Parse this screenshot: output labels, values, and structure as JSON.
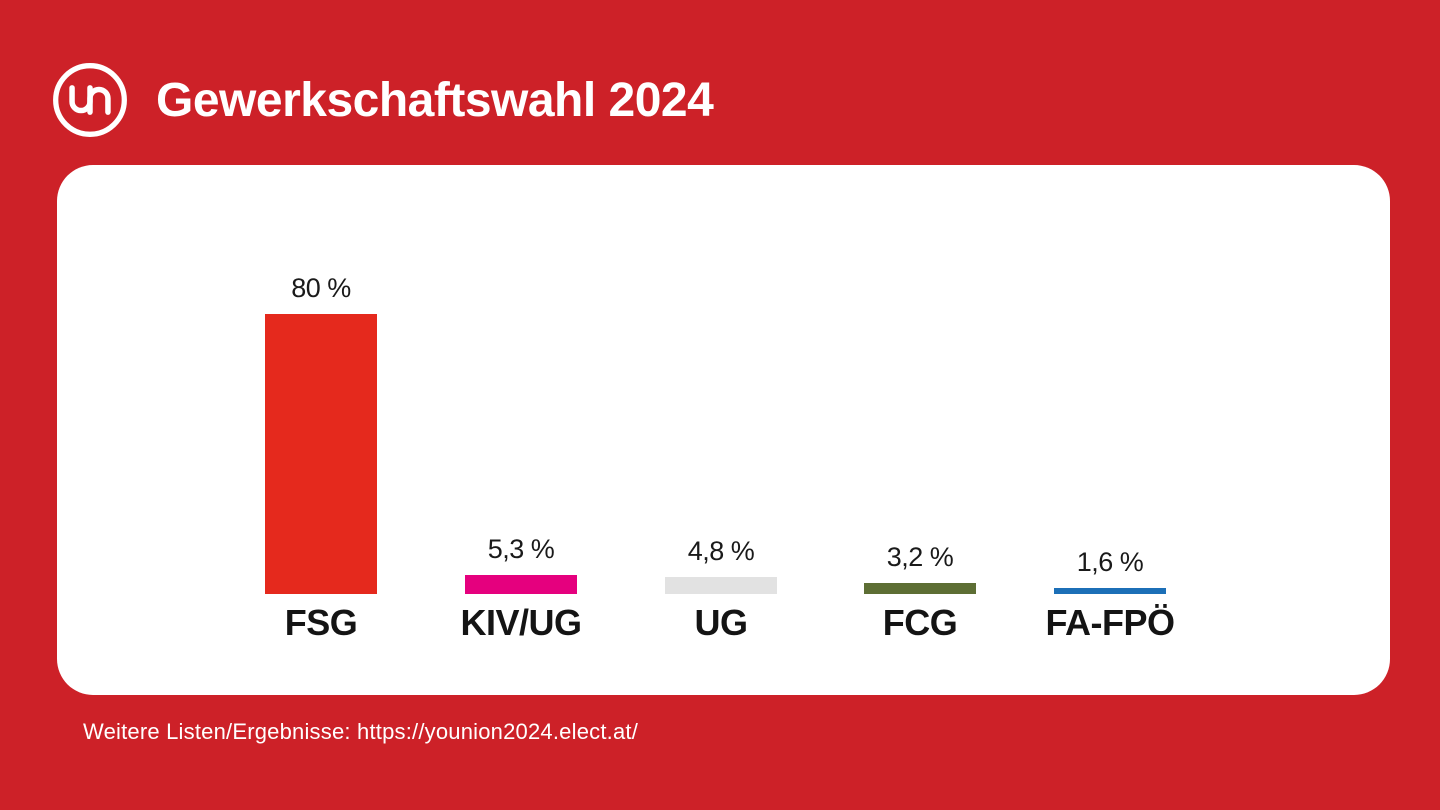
{
  "header": {
    "logo": "younion-logo",
    "logo_text": "un",
    "title": "Gewerkschaftswahl 2024"
  },
  "chart_data": {
    "type": "bar",
    "title": "Gewerkschaftswahl 2024",
    "categories": [
      "FSG",
      "KIV/UG",
      "UG",
      "FCG",
      "FA-FPÖ"
    ],
    "values": [
      80,
      5.3,
      4.8,
      3.2,
      1.6
    ],
    "value_labels": [
      "80 %",
      "5,3 %",
      "4,8 %",
      "3,2 %",
      "1,6 %"
    ],
    "bar_colors": [
      "#e5291d",
      "#e5007e",
      "#e2e2e2",
      "#5d6e34",
      "#1c6fb7"
    ],
    "xlabel": "",
    "ylabel": "",
    "unit": "%",
    "ylim": [
      0,
      100
    ],
    "grid": false,
    "axes_visible": false,
    "legend": "none"
  },
  "footer": {
    "note": "Weitere Listen/Ergebnisse: https://younion2024.elect.at/"
  },
  "colors": {
    "background": "#cd2128",
    "card": "#ffffff",
    "bar_fsg": "#e5291d",
    "bar_kivug": "#e5007e",
    "bar_ug": "#e2e2e2",
    "bar_fcg": "#5d6e34",
    "bar_fafpo": "#1c6fb7",
    "text_dark": "#1a1a1a",
    "text_light": "#ffffff"
  }
}
